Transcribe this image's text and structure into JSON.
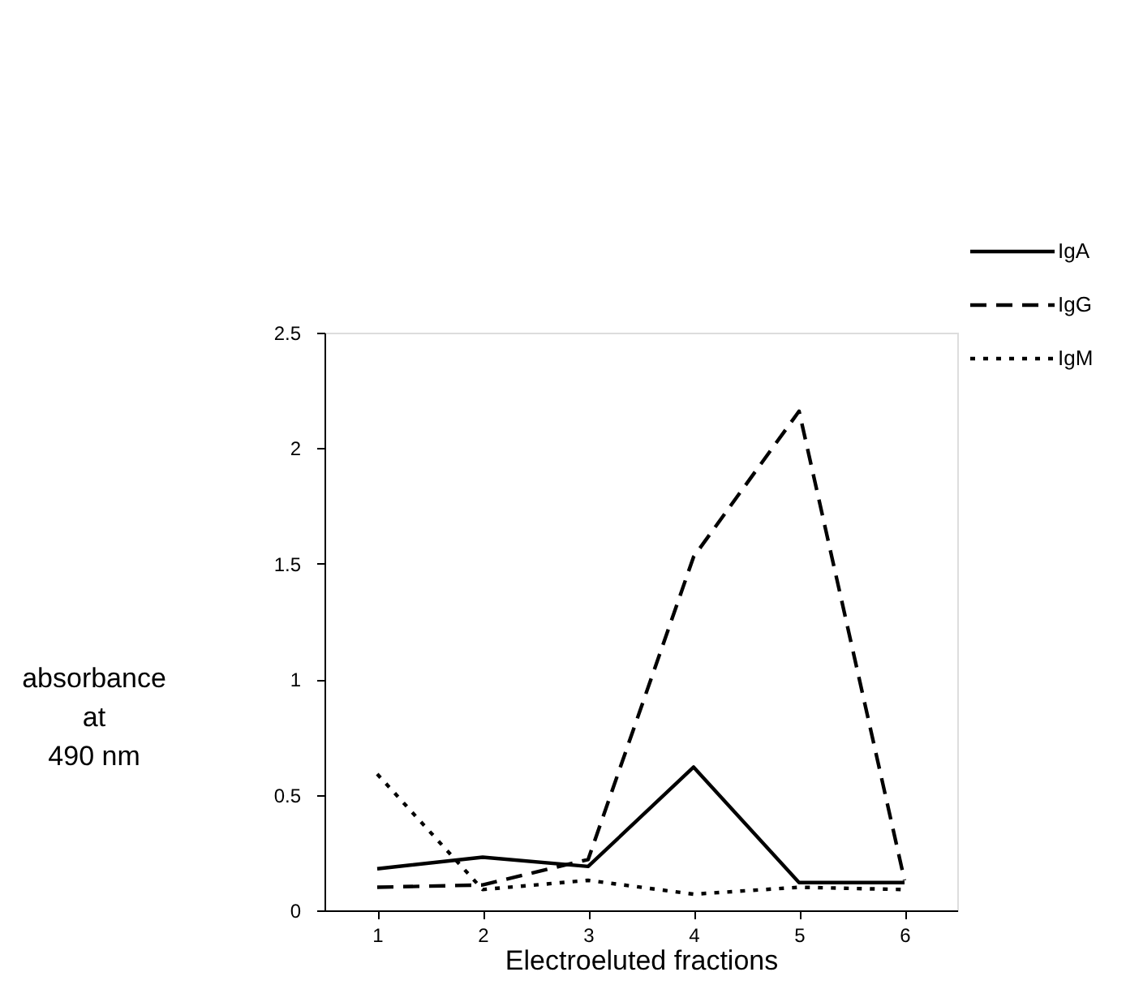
{
  "chart_data": {
    "type": "line",
    "xlabel": "Electroeluted fractions",
    "ylabel": "absorbance\nat\n490 nm",
    "categories": [
      "1",
      "2",
      "3",
      "4",
      "5",
      "6"
    ],
    "series": [
      {
        "name": "IgA",
        "color": "#000000",
        "line_style": "solid",
        "values": [
          0.18,
          0.23,
          0.19,
          0.62,
          0.12,
          0.12
        ]
      },
      {
        "name": "IgG",
        "color": "#000000",
        "line_style": "dashed",
        "values": [
          0.1,
          0.11,
          0.22,
          1.53,
          2.16,
          0.13
        ]
      },
      {
        "name": "IgM",
        "color": "#000000",
        "line_style": "dotted",
        "values": [
          0.59,
          0.09,
          0.13,
          0.07,
          0.1,
          0.09
        ]
      }
    ],
    "ylim": [
      0,
      2.5
    ],
    "yticks": [
      0,
      0.5,
      1,
      1.5,
      2,
      2.5
    ],
    "grid": false,
    "legend": "top right",
    "marker": "none"
  }
}
